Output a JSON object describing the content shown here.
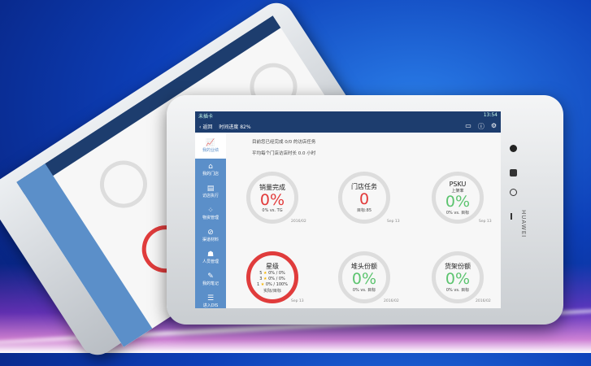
{
  "status": {
    "carrier": "未插卡",
    "time": "13:54"
  },
  "header": {
    "back": "返回",
    "progress": "时间进度 82%",
    "icons": [
      "message-icon",
      "help-icon",
      "settings-icon"
    ]
  },
  "sidebar": {
    "items": [
      {
        "label": "我的业绩",
        "icon": "chart-icon"
      },
      {
        "label": "我的门店",
        "icon": "store-icon"
      },
      {
        "label": "访店执行",
        "icon": "clipboard-icon"
      },
      {
        "label": "物资管理",
        "icon": "grid-icon"
      },
      {
        "label": "渠道材料",
        "icon": "clip-icon"
      },
      {
        "label": "人员管理",
        "icon": "people-icon"
      },
      {
        "label": "我的笔记",
        "icon": "note-icon"
      },
      {
        "label": "进入DIS",
        "icon": "list-icon"
      }
    ]
  },
  "info": {
    "line1": "目前您已经完成 0/0 的访店任务",
    "line2": "平均每个门店访店时长 0.0 小时"
  },
  "cards": [
    {
      "title": "销量完成",
      "value": "0%",
      "sub": "0% vs. TG",
      "date": "2016/02",
      "color": "#e23a3a"
    },
    {
      "title": "门店任务",
      "value": "0",
      "sub": "目标:85",
      "date": "Sep 13",
      "color": "#e23a3a"
    },
    {
      "title": "PSKU",
      "subtitle": "上架率",
      "value": "0%",
      "sub": "0% vs. 目标",
      "date": "Sep 13",
      "color": "#5cc46f"
    },
    {
      "title": "星级",
      "stars": [
        {
          "n": "5",
          "v": "0% / 0%"
        },
        {
          "n": "3",
          "v": "0% / 0%"
        },
        {
          "n": "1",
          "v": "0% / 100%"
        }
      ],
      "sub": "实际/目标",
      "date": "Sep 13",
      "color": "#e03c3c"
    },
    {
      "title": "堆头份额",
      "value": "0%",
      "sub": "0% vs. 目标",
      "date": "2016/02",
      "color": "#5cc46f"
    },
    {
      "title": "货架份额",
      "value": "0%",
      "sub": "0% vs. 目标",
      "date": "2016/02",
      "color": "#5cc46f"
    }
  ],
  "brand": "HUAWEI"
}
